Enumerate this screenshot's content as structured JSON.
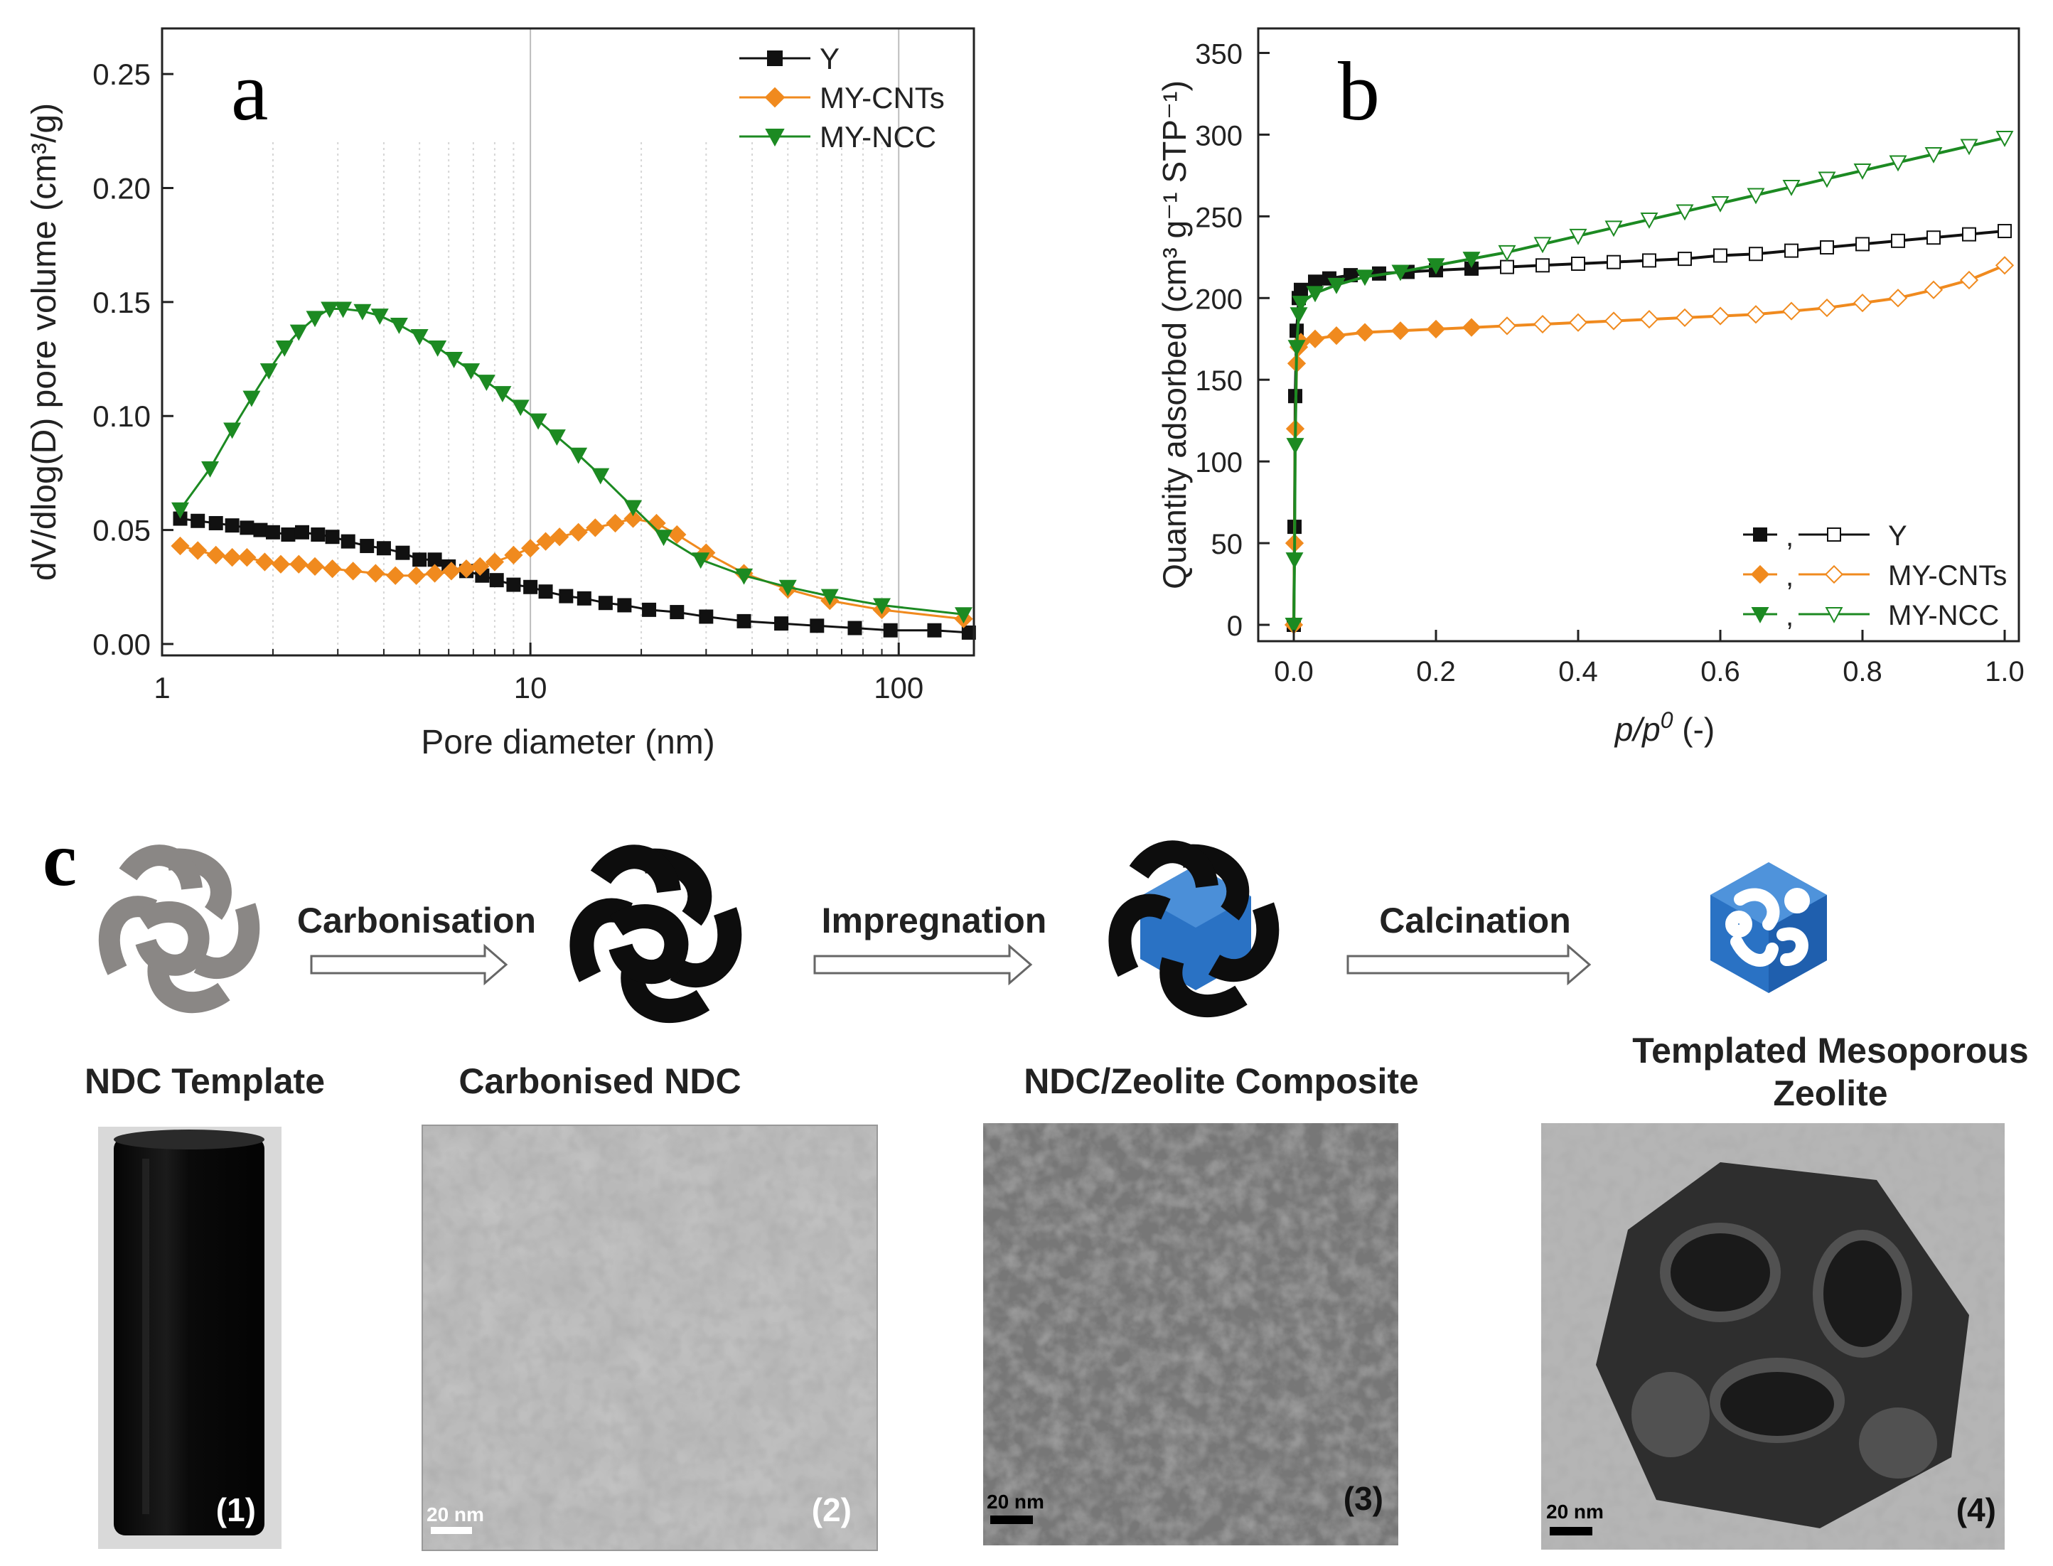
{
  "colors": {
    "y": "#111111",
    "cnt": "#f08a1e",
    "ncc": "#1c8a22",
    "zeolite": "#2a72c4",
    "template": "#8a8785"
  },
  "panel_labels": {
    "a": "a",
    "b": "b",
    "c": "c"
  },
  "chart_data": [
    {
      "id": "a",
      "type": "line",
      "xscale": "log",
      "xlabel": "Pore diameter (nm)",
      "ylabel": "dV/dlog(D) pore volume (cm³/g)",
      "xlim": [
        1,
        160
      ],
      "ylim": [
        -0.005,
        0.27
      ],
      "xticks": [
        1,
        10,
        100
      ],
      "xtick_labels": [
        "1",
        "10",
        "100"
      ],
      "yticks": [
        0.0,
        0.05,
        0.1,
        0.15,
        0.2,
        0.25
      ],
      "ytick_labels": [
        "0.00",
        "0.05",
        "0.10",
        "0.15",
        "0.20",
        "0.25"
      ],
      "legend_position": "top-right",
      "series": [
        {
          "name": "Y",
          "color": "#111111",
          "marker": "square",
          "x": [
            1.12,
            1.25,
            1.4,
            1.55,
            1.7,
            1.85,
            2.0,
            2.2,
            2.4,
            2.65,
            2.9,
            3.2,
            3.6,
            4.0,
            4.5,
            5.0,
            5.5,
            6.0,
            6.7,
            7.4,
            8.1,
            9.0,
            10,
            11,
            12.5,
            14,
            16,
            18,
            21,
            25,
            30,
            38,
            48,
            60,
            76,
            95,
            125,
            155
          ],
          "y": [
            0.055,
            0.054,
            0.053,
            0.052,
            0.051,
            0.05,
            0.049,
            0.048,
            0.049,
            0.048,
            0.047,
            0.045,
            0.043,
            0.042,
            0.04,
            0.037,
            0.037,
            0.034,
            0.032,
            0.03,
            0.028,
            0.026,
            0.025,
            0.023,
            0.021,
            0.02,
            0.018,
            0.017,
            0.015,
            0.014,
            0.012,
            0.01,
            0.009,
            0.008,
            0.007,
            0.006,
            0.006,
            0.005
          ]
        },
        {
          "name": "MY-CNTs",
          "color": "#f08a1e",
          "marker": "diamond",
          "x": [
            1.12,
            1.25,
            1.4,
            1.55,
            1.7,
            1.9,
            2.1,
            2.35,
            2.6,
            2.9,
            3.3,
            3.8,
            4.3,
            4.9,
            5.5,
            6.1,
            6.7,
            7.3,
            8.0,
            9.0,
            10,
            11,
            12,
            13.5,
            15,
            17,
            19,
            22,
            25,
            30,
            38,
            50,
            65,
            90,
            150
          ],
          "y": [
            0.043,
            0.041,
            0.039,
            0.038,
            0.038,
            0.036,
            0.035,
            0.035,
            0.034,
            0.033,
            0.032,
            0.031,
            0.03,
            0.03,
            0.031,
            0.032,
            0.033,
            0.034,
            0.036,
            0.039,
            0.042,
            0.045,
            0.047,
            0.049,
            0.051,
            0.053,
            0.055,
            0.053,
            0.048,
            0.04,
            0.031,
            0.024,
            0.019,
            0.015,
            0.011
          ]
        },
        {
          "name": "MY-NCC",
          "color": "#1c8a22",
          "marker": "triangle-down",
          "x": [
            1.12,
            1.35,
            1.55,
            1.75,
            1.95,
            2.15,
            2.35,
            2.6,
            2.85,
            3.1,
            3.5,
            3.9,
            4.4,
            5.0,
            5.6,
            6.2,
            6.9,
            7.6,
            8.4,
            9.4,
            10.5,
            11.8,
            13.5,
            15.5,
            19,
            23,
            29,
            38,
            50,
            65,
            90,
            150
          ],
          "y": [
            0.059,
            0.077,
            0.094,
            0.108,
            0.12,
            0.13,
            0.137,
            0.143,
            0.147,
            0.147,
            0.146,
            0.144,
            0.14,
            0.135,
            0.13,
            0.125,
            0.12,
            0.115,
            0.11,
            0.104,
            0.098,
            0.091,
            0.083,
            0.074,
            0.06,
            0.047,
            0.037,
            0.03,
            0.025,
            0.021,
            0.017,
            0.013
          ]
        }
      ]
    },
    {
      "id": "b",
      "type": "line",
      "xlabel_italic": "p/p",
      "xlabel_sup": "0",
      "xlabel_rest": " (-)",
      "ylabel": "Quantity adsorbed (cm³ g⁻¹ STP⁻¹)",
      "xlim": [
        -0.05,
        1.02
      ],
      "ylim": [
        -10,
        365
      ],
      "xticks": [
        0.0,
        0.2,
        0.4,
        0.6,
        0.8,
        1.0
      ],
      "xtick_labels": [
        "0.0",
        "0.2",
        "0.4",
        "0.6",
        "0.8",
        "1.0"
      ],
      "yticks": [
        0,
        50,
        100,
        150,
        200,
        250,
        300,
        350
      ],
      "ytick_labels": [
        "0",
        "50",
        "100",
        "150",
        "200",
        "250",
        "300",
        "350"
      ],
      "legend_position": "bottom-right",
      "legend_separator": ",",
      "series": [
        {
          "name": "Y",
          "color": "#111111",
          "marker": "square",
          "x": [
            0.0,
            0.001,
            0.002,
            0.004,
            0.007,
            0.01,
            0.03,
            0.05,
            0.08,
            0.12,
            0.16,
            0.2,
            0.25,
            0.3,
            0.35,
            0.4,
            0.45,
            0.5,
            0.55,
            0.6,
            0.65,
            0.7,
            0.75,
            0.8,
            0.85,
            0.9,
            0.95,
            1.0
          ],
          "y": [
            0,
            60,
            140,
            180,
            200,
            205,
            210,
            212,
            214,
            215,
            216,
            217,
            218,
            219,
            220,
            221,
            222,
            223,
            224,
            226,
            227,
            229,
            231,
            233,
            235,
            237,
            239,
            241
          ]
        },
        {
          "name": "MY-CNTs",
          "color": "#f08a1e",
          "marker": "diamond",
          "x": [
            0.0,
            0.001,
            0.002,
            0.004,
            0.007,
            0.01,
            0.03,
            0.06,
            0.1,
            0.15,
            0.2,
            0.25,
            0.3,
            0.35,
            0.4,
            0.45,
            0.5,
            0.55,
            0.6,
            0.65,
            0.7,
            0.75,
            0.8,
            0.85,
            0.9,
            0.95,
            1.0
          ],
          "y": [
            0,
            50,
            120,
            160,
            170,
            173,
            175,
            177,
            179,
            180,
            181,
            182,
            183,
            184,
            185,
            186,
            187,
            188,
            189,
            190,
            192,
            194,
            197,
            200,
            205,
            211,
            220
          ]
        },
        {
          "name": "MY-NCC",
          "color": "#1c8a22",
          "marker": "triangle-down",
          "x": [
            0.0,
            0.001,
            0.002,
            0.004,
            0.007,
            0.01,
            0.03,
            0.06,
            0.1,
            0.15,
            0.2,
            0.25,
            0.3,
            0.35,
            0.4,
            0.45,
            0.5,
            0.55,
            0.6,
            0.65,
            0.7,
            0.75,
            0.8,
            0.85,
            0.9,
            0.95,
            1.0
          ],
          "y": [
            0,
            40,
            110,
            170,
            190,
            197,
            203,
            208,
            213,
            216,
            220,
            224,
            228,
            233,
            238,
            243,
            248,
            253,
            258,
            263,
            268,
            273,
            278,
            283,
            288,
            293,
            298
          ]
        }
      ]
    }
  ],
  "schematic": {
    "steps": [
      "Carbonisation",
      "Impregnation",
      "Calcination"
    ],
    "captions": {
      "template": "NDC Template",
      "carbonised": "Carbonised NDC",
      "composite": "NDC/Zeolite Composite",
      "mesoporous_line1": "Templated Mesoporous",
      "mesoporous_line2": "Zeolite"
    },
    "photos": [
      {
        "label": "(1)",
        "scale": ""
      },
      {
        "label": "(2)",
        "scale": "20 nm"
      },
      {
        "label": "(3)",
        "scale": "20 nm"
      },
      {
        "label": "(4)",
        "scale": "20 nm"
      }
    ]
  }
}
